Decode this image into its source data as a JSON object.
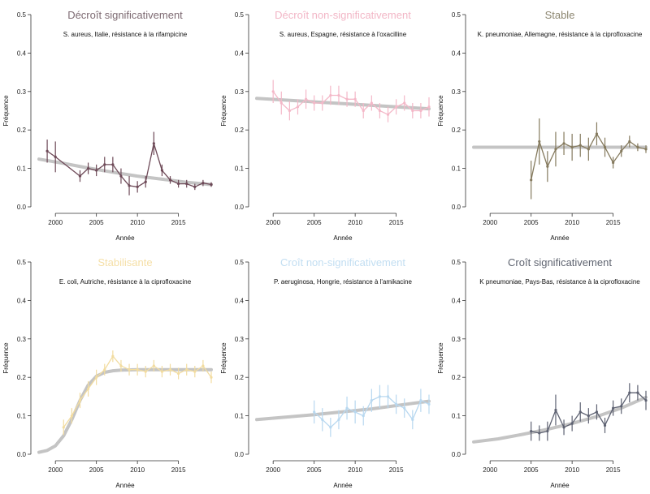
{
  "chart_data": [
    {
      "type": "line",
      "title": "Décroît significativement",
      "title_color": "#7d6a72",
      "subtitle": "S. aureus, Italie, résistance à la rifampicine",
      "xlabel": "Année",
      "ylabel": "Fréquence",
      "xlim": [
        1998,
        2019
      ],
      "ylim": [
        0,
        0.5
      ],
      "xticks": [
        "2000",
        "2005",
        "2010",
        "2015"
      ],
      "yticks": [
        "0.0",
        "0.1",
        "0.2",
        "0.3",
        "0.4",
        "0.5"
      ],
      "color": "#6e4a58",
      "series": [
        {
          "x": [
            1999,
            2000,
            2003,
            2004,
            2005,
            2006,
            2007,
            2008,
            2009,
            2010,
            2011,
            2012,
            2013,
            2014,
            2015,
            2016,
            2017,
            2018,
            2019
          ],
          "y": [
            0.145,
            0.13,
            0.08,
            0.1,
            0.095,
            0.11,
            0.11,
            0.08,
            0.055,
            0.052,
            0.065,
            0.165,
            0.095,
            0.07,
            0.06,
            0.06,
            0.052,
            0.062,
            0.058
          ],
          "err": [
            0.03,
            0.04,
            0.015,
            0.015,
            0.015,
            0.02,
            0.02,
            0.02,
            0.025,
            0.015,
            0.015,
            0.03,
            0.015,
            0.01,
            0.01,
            0.01,
            0.008,
            0.008,
            0.006
          ]
        }
      ],
      "fit": {
        "x": [
          1998,
          2001,
          2004,
          2007,
          2010,
          2013,
          2016,
          2019
        ],
        "y": [
          0.124,
          0.113,
          0.101,
          0.09,
          0.08,
          0.072,
          0.064,
          0.058
        ]
      }
    },
    {
      "type": "line",
      "title": "Décroît non-significativement",
      "title_color": "#f2b6c6",
      "subtitle": "S. aureus, Espagne, résistance à l'oxacilline",
      "xlabel": "Année",
      "ylabel": "Fréquence",
      "xlim": [
        1998,
        2019
      ],
      "ylim": [
        0,
        0.5
      ],
      "xticks": [
        "2000",
        "2005",
        "2010",
        "2015"
      ],
      "yticks": [
        "0.0",
        "0.1",
        "0.2",
        "0.3",
        "0.4",
        "0.5"
      ],
      "color": "#f4b8c8",
      "series": [
        {
          "x": [
            2000,
            2001,
            2002,
            2003,
            2004,
            2005,
            2006,
            2007,
            2008,
            2009,
            2010,
            2011,
            2012,
            2013,
            2014,
            2015,
            2016,
            2017,
            2018,
            2019
          ],
          "y": [
            0.3,
            0.27,
            0.25,
            0.26,
            0.28,
            0.27,
            0.27,
            0.29,
            0.29,
            0.28,
            0.28,
            0.25,
            0.27,
            0.25,
            0.24,
            0.26,
            0.27,
            0.25,
            0.25,
            0.26
          ],
          "err": [
            0.03,
            0.03,
            0.025,
            0.02,
            0.025,
            0.02,
            0.02,
            0.025,
            0.025,
            0.02,
            0.02,
            0.02,
            0.02,
            0.02,
            0.02,
            0.02,
            0.02,
            0.02,
            0.02,
            0.025
          ]
        }
      ],
      "fit": {
        "x": [
          1998,
          2019
        ],
        "y": [
          0.282,
          0.255
        ]
      }
    },
    {
      "type": "line",
      "title": "Stable",
      "title_color": "#8c8670",
      "subtitle": "K. pneumoniae, Allemagne, résistance à la ciprofloxacine",
      "xlabel": "Année",
      "ylabel": "Fréquence",
      "xlim": [
        1998,
        2019
      ],
      "ylim": [
        0,
        0.5
      ],
      "xticks": [
        "2000",
        "2005",
        "2010",
        "2015"
      ],
      "yticks": [
        "0.0",
        "0.1",
        "0.2",
        "0.3",
        "0.4",
        "0.5"
      ],
      "color": "#857a5e",
      "series": [
        {
          "x": [
            2005,
            2006,
            2007,
            2008,
            2009,
            2010,
            2011,
            2012,
            2013,
            2014,
            2015,
            2016,
            2017,
            2018,
            2019
          ],
          "y": [
            0.07,
            0.17,
            0.105,
            0.15,
            0.165,
            0.155,
            0.16,
            0.15,
            0.19,
            0.155,
            0.115,
            0.145,
            0.17,
            0.155,
            0.15
          ],
          "err": [
            0.05,
            0.06,
            0.04,
            0.045,
            0.03,
            0.035,
            0.03,
            0.03,
            0.03,
            0.025,
            0.015,
            0.015,
            0.015,
            0.01,
            0.01
          ]
        }
      ],
      "fit": {
        "x": [
          1998,
          2019
        ],
        "y": [
          0.155,
          0.155
        ]
      }
    },
    {
      "type": "line",
      "title": "Stabilisante",
      "title_color": "#f5dfa6",
      "subtitle": "E. coli, Autriche, résistance à la ciprofloxacine",
      "xlabel": "Année",
      "ylabel": "Fréquence",
      "xlim": [
        1998,
        2019
      ],
      "ylim": [
        0,
        0.5
      ],
      "xticks": [
        "2000",
        "2005",
        "2010",
        "2015"
      ],
      "yticks": [
        "0.0",
        "0.1",
        "0.2",
        "0.3",
        "0.4",
        "0.5"
      ],
      "color": "#f2dca0",
      "series": [
        {
          "x": [
            2001,
            2002,
            2003,
            2004,
            2005,
            2006,
            2007,
            2008,
            2009,
            2010,
            2011,
            2012,
            2013,
            2014,
            2015,
            2016,
            2017,
            2018,
            2019
          ],
          "y": [
            0.07,
            0.1,
            0.14,
            0.17,
            0.2,
            0.22,
            0.255,
            0.23,
            0.22,
            0.22,
            0.215,
            0.23,
            0.215,
            0.22,
            0.21,
            0.22,
            0.215,
            0.23,
            0.2
          ],
          "err": [
            0.02,
            0.02,
            0.02,
            0.02,
            0.02,
            0.015,
            0.015,
            0.015,
            0.015,
            0.015,
            0.015,
            0.015,
            0.015,
            0.015,
            0.015,
            0.015,
            0.015,
            0.015,
            0.015
          ]
        }
      ],
      "fit": {
        "x": [
          1998,
          1999,
          2000,
          2001,
          2002,
          2003,
          2004,
          2005,
          2006,
          2007,
          2008,
          2010,
          2013,
          2016,
          2019
        ],
        "y": [
          0.005,
          0.01,
          0.022,
          0.048,
          0.09,
          0.14,
          0.18,
          0.203,
          0.213,
          0.217,
          0.219,
          0.22,
          0.22,
          0.22,
          0.22
        ]
      }
    },
    {
      "type": "line",
      "title": "Croît non-significativement",
      "title_color": "#c2def2",
      "subtitle": "P. aeruginosa, Hongrie, résistance à l'amikacine",
      "xlabel": "Année",
      "ylabel": "Fréquence",
      "xlim": [
        1998,
        2019
      ],
      "ylim": [
        0,
        0.5
      ],
      "xticks": [
        "2000",
        "2005",
        "2010",
        "2015"
      ],
      "yticks": [
        "0.0",
        "0.1",
        "0.2",
        "0.3",
        "0.4",
        "0.5"
      ],
      "color": "#b8d8f0",
      "series": [
        {
          "x": [
            2005,
            2006,
            2007,
            2008,
            2009,
            2010,
            2011,
            2012,
            2013,
            2014,
            2015,
            2016,
            2017,
            2018,
            2019
          ],
          "y": [
            0.11,
            0.09,
            0.07,
            0.09,
            0.12,
            0.11,
            0.1,
            0.14,
            0.15,
            0.15,
            0.13,
            0.12,
            0.09,
            0.14,
            0.13
          ],
          "err": [
            0.03,
            0.03,
            0.025,
            0.025,
            0.03,
            0.03,
            0.025,
            0.03,
            0.03,
            0.03,
            0.025,
            0.025,
            0.025,
            0.03,
            0.025
          ]
        }
      ],
      "fit": {
        "x": [
          1998,
          2005,
          2012,
          2019
        ],
        "y": [
          0.09,
          0.103,
          0.118,
          0.138
        ]
      }
    },
    {
      "type": "line",
      "title": "Croît significativement",
      "title_color": "#5f6470",
      "subtitle": "K pneumoniae, Pays-Bas, résistance à la ciprofloxacine",
      "xlabel": "Année",
      "ylabel": "Fréquence",
      "xlim": [
        1998,
        2019
      ],
      "ylim": [
        0,
        0.5
      ],
      "xticks": [
        "2000",
        "2005",
        "2010",
        "2015"
      ],
      "yticks": [
        "0.0",
        "0.1",
        "0.2",
        "0.3",
        "0.4",
        "0.5"
      ],
      "color": "#5e6272",
      "series": [
        {
          "x": [
            2005,
            2006,
            2007,
            2008,
            2009,
            2010,
            2011,
            2012,
            2013,
            2014,
            2015,
            2016,
            2017,
            2018,
            2019
          ],
          "y": [
            0.06,
            0.055,
            0.06,
            0.115,
            0.07,
            0.08,
            0.11,
            0.1,
            0.11,
            0.075,
            0.12,
            0.125,
            0.16,
            0.16,
            0.14
          ],
          "err": [
            0.025,
            0.02,
            0.025,
            0.04,
            0.02,
            0.02,
            0.025,
            0.02,
            0.02,
            0.02,
            0.02,
            0.02,
            0.025,
            0.02,
            0.025
          ]
        }
      ],
      "fit": {
        "x": [
          1998,
          2001,
          2004,
          2007,
          2010,
          2013,
          2016,
          2019
        ],
        "y": [
          0.032,
          0.04,
          0.052,
          0.065,
          0.08,
          0.098,
          0.12,
          0.148
        ]
      }
    }
  ]
}
